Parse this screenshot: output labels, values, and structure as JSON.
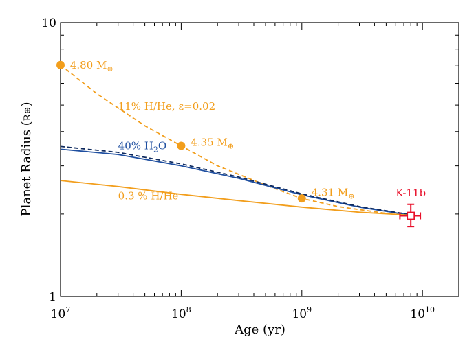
{
  "chart_data": {
    "type": "line",
    "title": "",
    "xlabel": "Age (yr)",
    "ylabel": "Planet Radius (R⊕)",
    "ylabel_parts": {
      "main": "Planet Radius (",
      "unit": "R⊕",
      "close": ")"
    },
    "xscale": "log",
    "yscale": "log",
    "xlim": [
      10000000.0,
      20000000000.0
    ],
    "ylim": [
      1,
      10
    ],
    "grid": false,
    "x_ticks": [
      {
        "value": 10000000.0,
        "base": "10",
        "exp": "7"
      },
      {
        "value": 100000000.0,
        "base": "10",
        "exp": "8"
      },
      {
        "value": 1000000000.0,
        "base": "10",
        "exp": "9"
      },
      {
        "value": 10000000000.0,
        "base": "10",
        "exp": "10"
      }
    ],
    "y_ticks": [
      {
        "value": 1,
        "label": "1"
      },
      {
        "value": 10,
        "label": "10"
      }
    ],
    "colors": {
      "orange": "#f29e1c",
      "blue": "#1f4fa0",
      "dark_blue": "#0f2a5e",
      "red": "#e8102a"
    },
    "series": [
      {
        "color": "orange",
        "dash": "dashed",
        "x": [
          10000000.0,
          20000000.0,
          50000000.0,
          100000000.0,
          200000000.0,
          500000000.0,
          1000000000.0,
          2000000000.0,
          5000000000.0,
          8000000000.0
        ],
        "y": [
          7.0,
          5.5,
          4.2,
          3.55,
          3.0,
          2.55,
          2.28,
          2.13,
          2.01,
          1.97
        ]
      },
      {
        "color": "blue",
        "dash": "solid",
        "x": [
          10000000.0,
          30000000.0,
          100000000.0,
          300000000.0,
          1000000000.0,
          3000000000.0,
          8000000000.0
        ],
        "y": [
          3.45,
          3.3,
          3.0,
          2.7,
          2.35,
          2.12,
          1.98
        ]
      },
      {
        "color": "dark_blue",
        "dash": "dashed",
        "x": [
          10000000.0,
          30000000.0,
          100000000.0,
          300000000.0,
          1000000000.0,
          3000000000.0,
          8000000000.0
        ],
        "y": [
          3.53,
          3.36,
          3.05,
          2.73,
          2.37,
          2.13,
          1.99
        ]
      },
      {
        "color": "orange",
        "dash": "solid",
        "x": [
          10000000.0,
          30000000.0,
          100000000.0,
          300000000.0,
          1000000000.0,
          3000000000.0,
          8000000000.0
        ],
        "y": [
          2.65,
          2.52,
          2.36,
          2.24,
          2.12,
          2.03,
          1.98
        ]
      }
    ],
    "points": [
      {
        "x": 10000000.0,
        "y": 7.0,
        "color": "orange"
      },
      {
        "x": 100000000.0,
        "y": 3.55,
        "color": "orange"
      },
      {
        "x": 1000000000.0,
        "y": 2.28,
        "color": "orange"
      }
    ],
    "observation": {
      "x": 8000000000.0,
      "y": 1.97,
      "x_err": [
        6500000000.0,
        9600000000.0
      ],
      "y_err": [
        1.8,
        2.17
      ],
      "color": "red",
      "label": "K-11b"
    },
    "annotations": [
      {
        "x": 12000000.0,
        "y": 7.0,
        "color": "orange",
        "parts": [
          {
            "t": "4.80 M"
          },
          {
            "t": "⊕",
            "sub": true
          }
        ]
      },
      {
        "x": 120000000.0,
        "y": 3.65,
        "color": "orange",
        "parts": [
          {
            "t": "4.35 M"
          },
          {
            "t": "⊕",
            "sub": true
          }
        ]
      },
      {
        "x": 1200000000.0,
        "y": 2.4,
        "color": "orange",
        "parts": [
          {
            "t": "4.31 M"
          },
          {
            "t": "⊕",
            "sub": true
          }
        ]
      },
      {
        "x": 30000000.0,
        "y": 4.95,
        "color": "orange",
        "parts": [
          {
            "t": "11% H/He, ε=0.02"
          }
        ]
      },
      {
        "x": 30000000.0,
        "y": 3.55,
        "color": "blue",
        "parts": [
          {
            "t": "40% H"
          },
          {
            "t": "2",
            "sub": true
          },
          {
            "t": "O"
          }
        ]
      },
      {
        "x": 30000000.0,
        "y": 2.33,
        "color": "orange",
        "parts": [
          {
            "t": "0.3 % H/He"
          }
        ]
      }
    ]
  }
}
